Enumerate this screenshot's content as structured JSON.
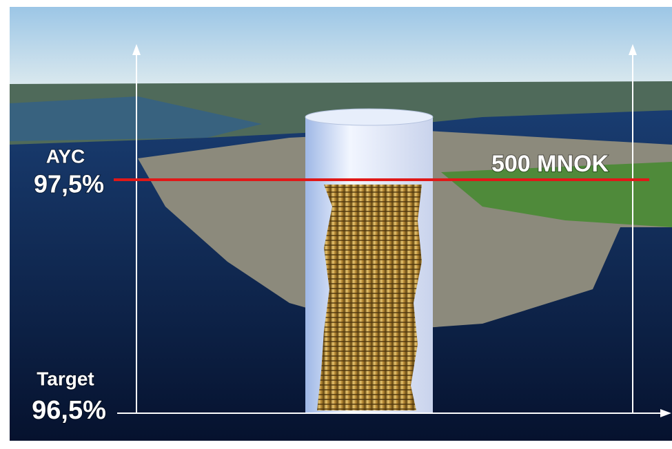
{
  "labels": {
    "actual": {
      "title": "AYC",
      "value": "97,5%"
    },
    "target": {
      "title": "Target",
      "value": "96,5%"
    },
    "amount": "500 MNOK"
  }
}
